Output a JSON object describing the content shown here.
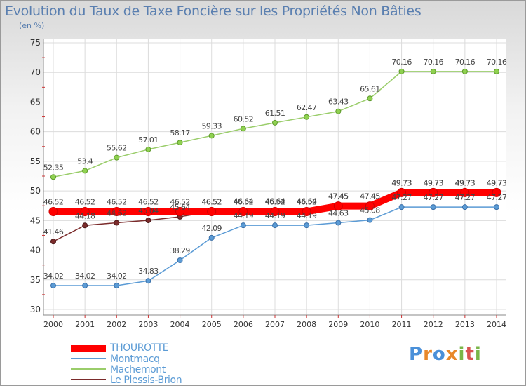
{
  "chart_data": {
    "type": "line",
    "title": "Evolution du Taux de Taxe Foncière sur les Propriétés Non Bâties",
    "subtitle": "(en %)",
    "x": [
      "2000",
      "2001",
      "2002",
      "2003",
      "2004",
      "2005",
      "2006",
      "2007",
      "2008",
      "2009",
      "2010",
      "2011",
      "2012",
      "2013",
      "2014"
    ],
    "ylim": [
      30,
      75
    ],
    "yticks": [
      30,
      35,
      40,
      45,
      50,
      55,
      60,
      65,
      70,
      75
    ],
    "grid": true,
    "legend_position": "bottom-left",
    "series": [
      {
        "name": "THOUROTTE",
        "color": "#ff0000",
        "values": [
          46.52,
          46.52,
          46.52,
          46.52,
          46.52,
          46.52,
          46.52,
          46.52,
          46.52,
          47.45,
          47.45,
          49.73,
          49.73,
          49.73,
          49.73
        ],
        "labels": [
          "46.52",
          "46.52",
          "46.52",
          "46.52",
          "46.52",
          "46.52",
          "46.52",
          "46.52",
          "46.52",
          "47.45",
          "47.45",
          "49.73",
          "49.73",
          "49.73",
          "49.73"
        ]
      },
      {
        "name": "Montmacq",
        "color": "#5b9bd5",
        "values": [
          34.02,
          34.02,
          34.02,
          34.83,
          38.29,
          42.09,
          44.19,
          44.19,
          44.19,
          44.63,
          45.08,
          47.27,
          47.27,
          47.27,
          47.27
        ],
        "labels": [
          "34.02",
          "34.02",
          "34.02",
          "34.83",
          "38.29",
          "42.09",
          "44.19",
          "44.19",
          "44.19",
          "44.63",
          "45.08",
          "47.27",
          "47.27",
          "47.27",
          "47.27"
        ]
      },
      {
        "name": "Machemont",
        "color": "#9acd6a",
        "values": [
          52.35,
          53.4,
          55.62,
          57.01,
          58.17,
          59.33,
          60.52,
          61.51,
          62.47,
          63.43,
          65.61,
          70.16,
          70.16,
          70.16,
          70.16
        ],
        "labels": [
          "52.35",
          "53.4",
          "55.62",
          "57.01",
          "58.17",
          "59.33",
          "60.52",
          "61.51",
          "62.47",
          "63.43",
          "65.61",
          "70.16",
          "70.16",
          "70.16",
          "70.16"
        ]
      },
      {
        "name": "Le Plessis-Brion",
        "color": "#7b2b2b",
        "values": [
          41.46,
          44.18,
          44.62,
          45.04,
          45.64,
          46.52,
          46.64,
          46.64,
          46.64,
          47.45,
          47.45,
          49.73,
          49.73,
          49.73,
          49.73
        ],
        "labels": [
          "41.46",
          "44.18",
          "44.62",
          "45.04",
          "45.64",
          "46.52",
          "46.64",
          "46.64",
          "46.64",
          "47.45",
          "47.45",
          "49.73",
          "49.73",
          "49.73",
          "49.73"
        ]
      }
    ]
  },
  "branding": {
    "logo_letters": [
      "P",
      "r",
      "o",
      "x",
      "i",
      "t",
      "i"
    ],
    "logo_colors": [
      "#4a90d9",
      "#e8882a",
      "#4a90d9",
      "#e8882a",
      "#7ab648",
      "#d9534f",
      "#7ab648"
    ]
  }
}
